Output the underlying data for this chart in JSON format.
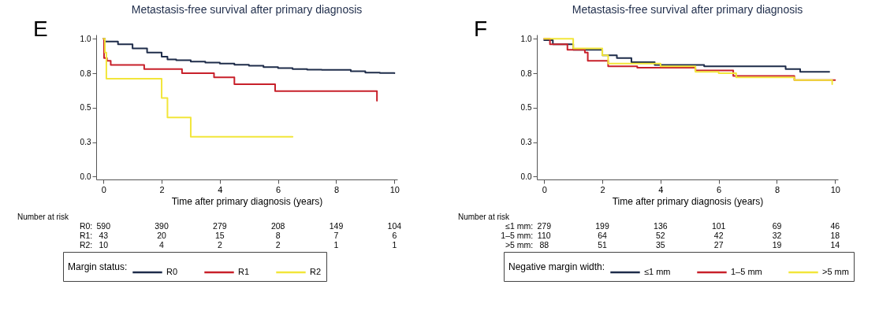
{
  "chart_data": [
    {
      "type": "step",
      "title": "Metastasis-free survival after primary diagnosis",
      "xlabel": "Time after primary diagnosis (years)",
      "legend_title": "Margin status:",
      "legend": "bottom",
      "grid": false,
      "xlim": [
        -0.25,
        10.1
      ],
      "ylim": [
        -0.02,
        1.03
      ],
      "xticks": [
        0,
        2,
        4,
        6,
        8,
        10
      ],
      "yticks": [
        {
          "value": 0,
          "label": "0.0"
        },
        {
          "value": 0.25,
          "label": "0.3"
        },
        0.5,
        {
          "value": 0.75,
          "label": "0.8"
        },
        {
          "value": 1,
          "label": "1.0"
        }
      ],
      "series": [
        {
          "name": "R0",
          "color": "#1e2c4a",
          "x": [
            0,
            0.05,
            0.5,
            1,
            1.5,
            2,
            2.2,
            2.5,
            3,
            3.5,
            4,
            4.5,
            5,
            5.5,
            6,
            6.5,
            7,
            7.5,
            8,
            8.5,
            9,
            9.5,
            10
          ],
          "values": [
            1,
            0.98,
            0.96,
            0.93,
            0.9,
            0.87,
            0.85,
            0.845,
            0.835,
            0.828,
            0.82,
            0.812,
            0.805,
            0.795,
            0.787,
            0.78,
            0.776,
            0.775,
            0.774,
            0.765,
            0.755,
            0.752,
            0.75
          ]
        },
        {
          "name": "R1",
          "color": "#c8202a",
          "x": [
            0,
            0.02,
            0.12,
            0.25,
            1.4,
            2.7,
            3.8,
            4.5,
            5.9,
            9.4
          ],
          "values": [
            1,
            0.86,
            0.84,
            0.81,
            0.78,
            0.75,
            0.72,
            0.67,
            0.62,
            0.55
          ]
        },
        {
          "name": "R2",
          "color": "#f2e63a",
          "x": [
            0,
            0.05,
            0.1,
            2.0,
            2.2,
            3.0,
            6.5
          ],
          "values": [
            1,
            0.9,
            0.71,
            0.57,
            0.43,
            0.29,
            0.29
          ]
        }
      ],
      "annotations": [
        "E",
        "Number at risk",
        "R0:",
        "590",
        "390",
        "279",
        "208",
        "149",
        "104",
        "R1:",
        "43",
        "20",
        "15",
        "8",
        "7",
        "6",
        "R2:",
        "10",
        "4",
        "2",
        "2",
        "1",
        "1"
      ]
    },
    {
      "type": "step",
      "title": "Metastasis-free survival after primary diagnosis",
      "xlabel": "Time after primary diagnosis (years)",
      "legend_title": "Negative margin width:",
      "legend": "bottom",
      "grid": false,
      "xlim": [
        -0.25,
        10.1
      ],
      "ylim": [
        -0.02,
        1.03
      ],
      "xticks": [
        0,
        2,
        4,
        6,
        8,
        10
      ],
      "yticks": [
        {
          "value": 0,
          "label": "0.0"
        },
        {
          "value": 0.25,
          "label": "0.3"
        },
        0.5,
        {
          "value": 0.75,
          "label": "0.8"
        },
        {
          "value": 1,
          "label": "1.0"
        }
      ],
      "series": [
        {
          "name": "≤1 mm",
          "color": "#1e2c4a",
          "x": [
            0,
            0.3,
            1,
            2,
            2.5,
            3,
            3.8,
            4.5,
            5,
            5.5,
            6,
            7,
            8,
            8.3,
            8.8,
            9.8
          ],
          "values": [
            0.99,
            0.96,
            0.92,
            0.88,
            0.86,
            0.83,
            0.81,
            0.81,
            0.81,
            0.8,
            0.8,
            0.8,
            0.8,
            0.78,
            0.76,
            0.76
          ]
        },
        {
          "name": "1–5 mm",
          "color": "#c8202a",
          "x": [
            0,
            0.2,
            0.8,
            1.4,
            1.5,
            2.2,
            3.2,
            4,
            5.2,
            6.5,
            8.6,
            10
          ],
          "values": [
            1,
            0.96,
            0.92,
            0.9,
            0.84,
            0.8,
            0.79,
            0.79,
            0.77,
            0.73,
            0.7,
            0.7
          ]
        },
        {
          "name": ">5 mm",
          "color": "#f2e63a",
          "x": [
            0,
            1,
            2,
            2.2,
            4,
            5.2,
            6,
            6.6,
            8.6,
            9.9
          ],
          "values": [
            1,
            0.93,
            0.88,
            0.82,
            0.8,
            0.76,
            0.75,
            0.72,
            0.7,
            0.67
          ]
        }
      ],
      "annotations": [
        "F",
        "Number at risk",
        "≤1 mm:",
        "279",
        "199",
        "136",
        "101",
        "69",
        "46",
        "1–5 mm:",
        "110",
        "64",
        "52",
        "42",
        "32",
        "18",
        ">5 mm:",
        "88",
        "51",
        "35",
        "27",
        "19",
        "14"
      ]
    }
  ]
}
